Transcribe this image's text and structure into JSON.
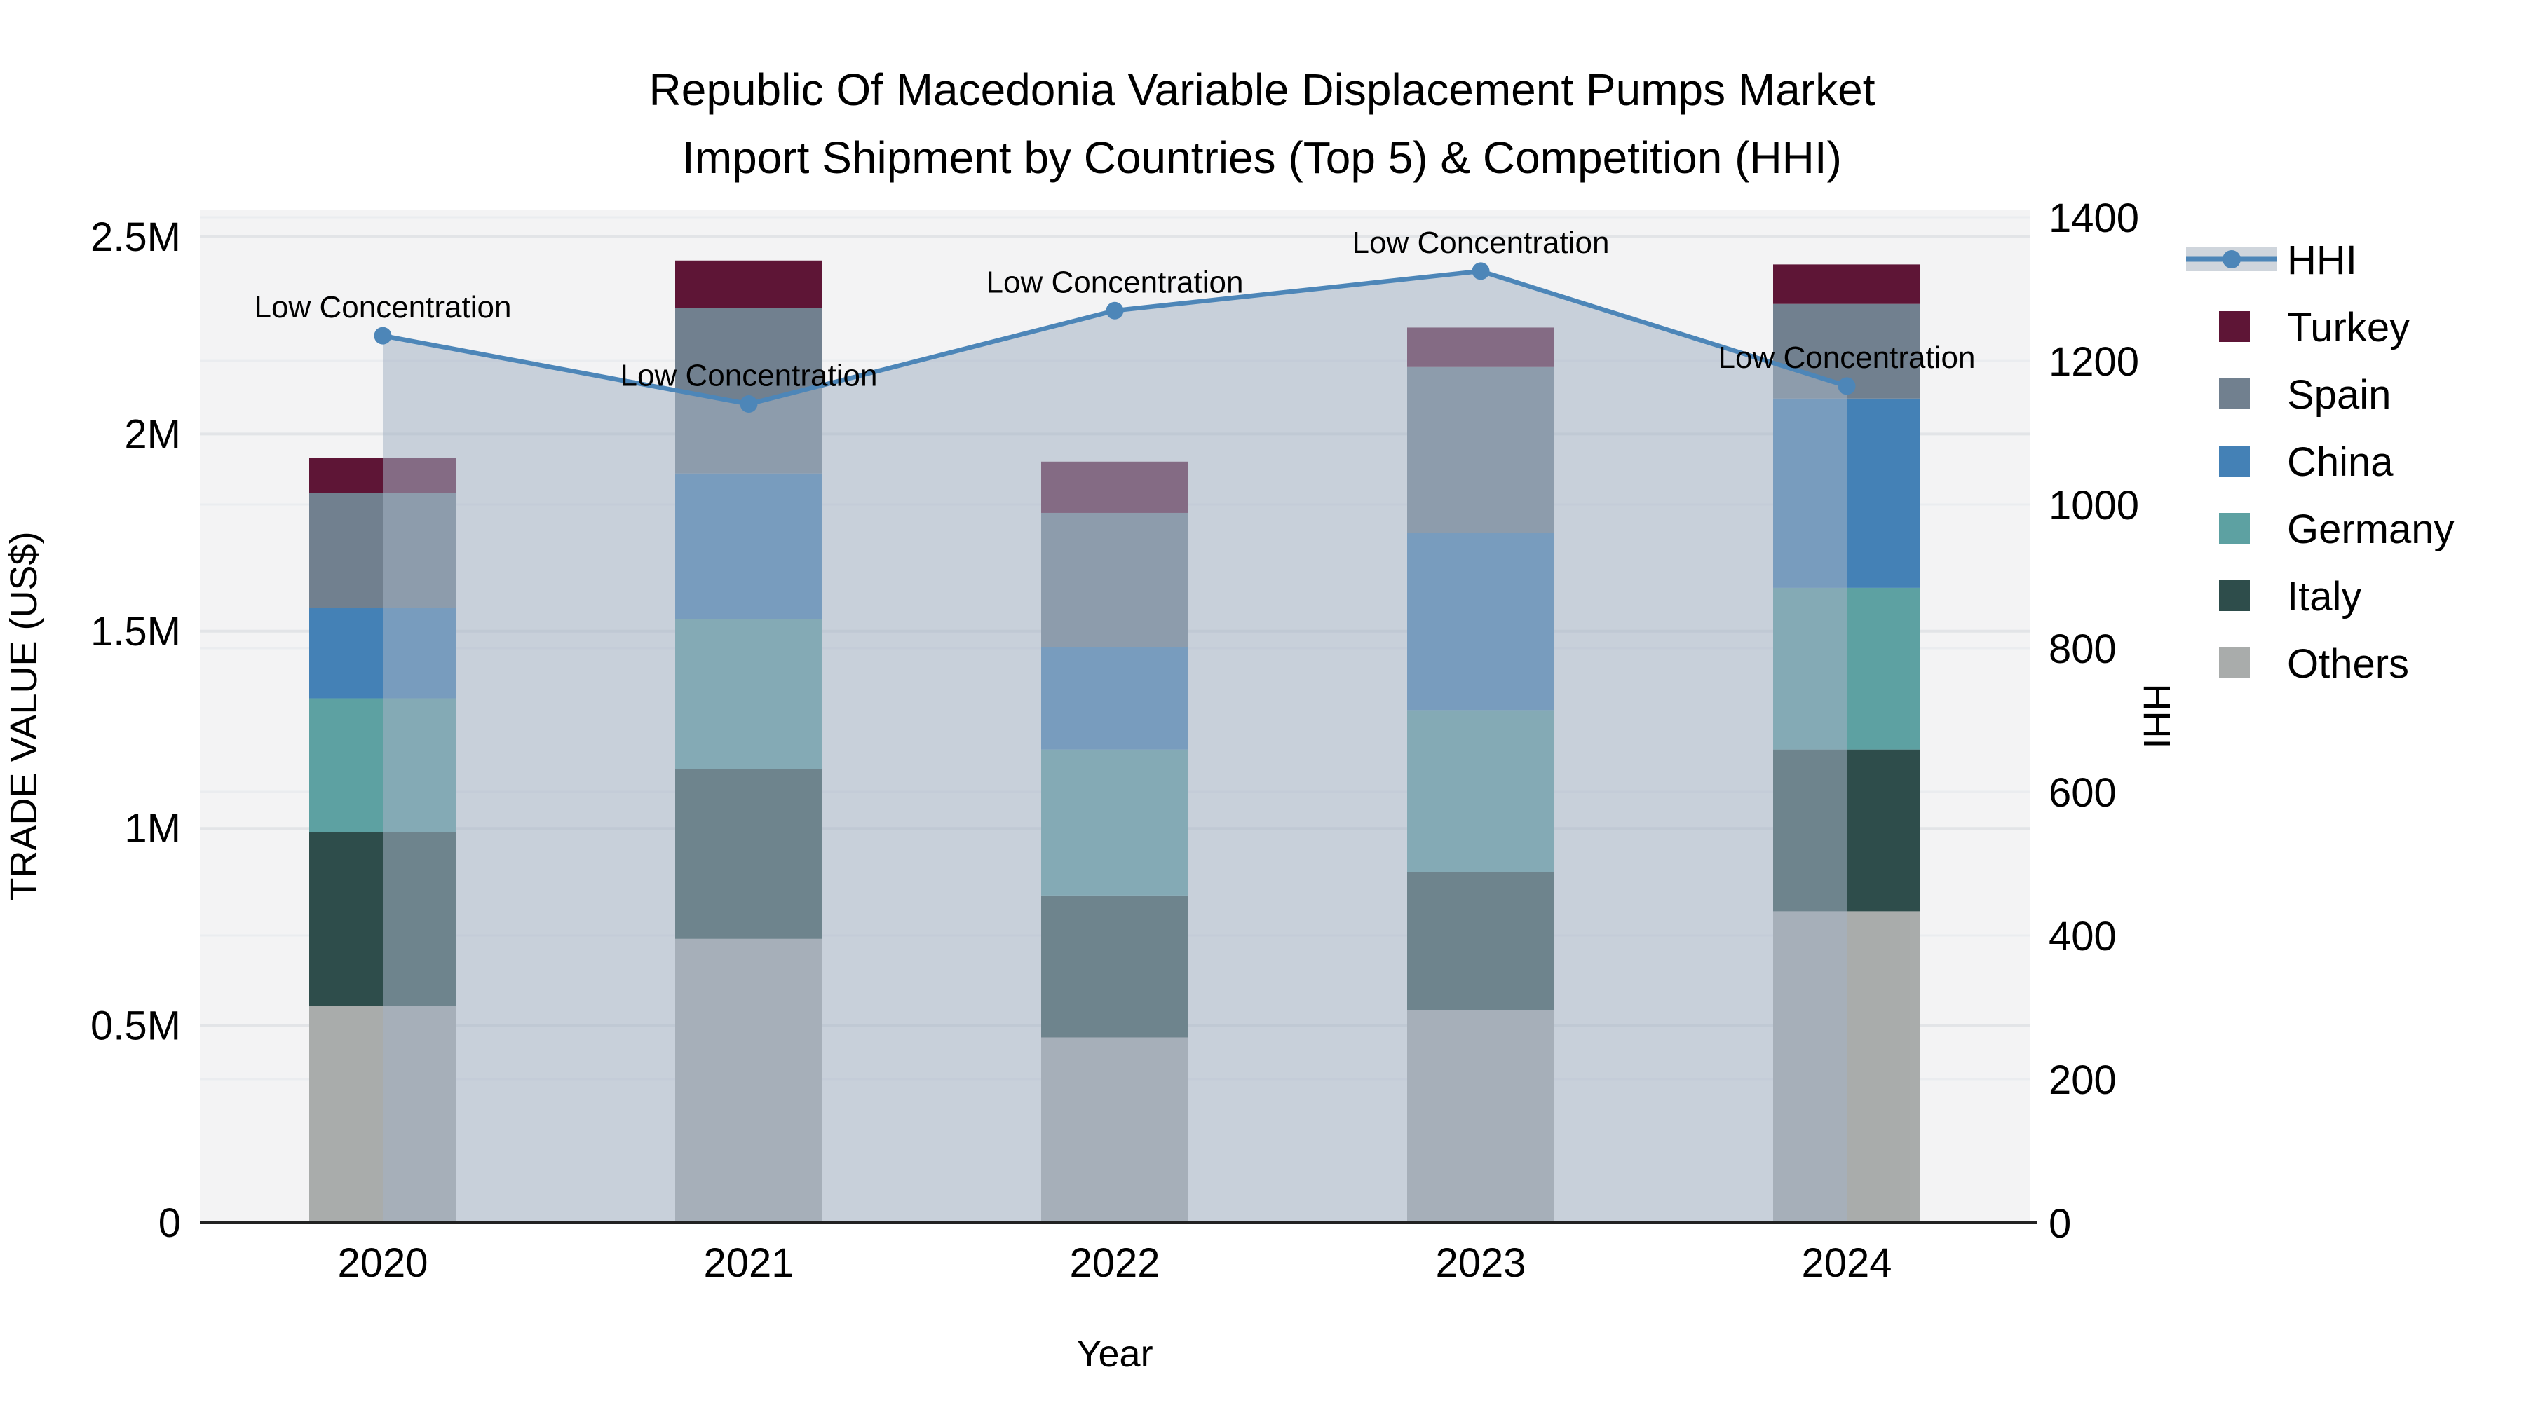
{
  "title": {
    "line1": "Republic Of Macedonia Variable Displacement Pumps Market",
    "line2": "Import Shipment by Countries (Top 5) & Competition (HHI)"
  },
  "axes": {
    "x": {
      "title": "Year",
      "categories": [
        "2020",
        "2021",
        "2022",
        "2023",
        "2024"
      ]
    },
    "y_left": {
      "title": "TRADE VALUE (US$)",
      "tick_labels": [
        "0",
        "0.5M",
        "1M",
        "1.5M",
        "2M",
        "2.5M"
      ],
      "tick_values_musd": [
        0,
        0.5,
        1,
        1.5,
        2,
        2.5
      ],
      "max_musd": 2.5
    },
    "y_right": {
      "title": "HHI",
      "tick_labels": [
        "0",
        "200",
        "400",
        "600",
        "800",
        "1000",
        "1200",
        "1400"
      ],
      "tick_values": [
        0,
        200,
        400,
        600,
        800,
        1000,
        1200,
        1400
      ],
      "max": 1400
    }
  },
  "legend": {
    "items": [
      {
        "label": "HHI",
        "type": "line",
        "color": "#4d86b8"
      },
      {
        "label": "Turkey",
        "type": "square",
        "color": "#5e1536"
      },
      {
        "label": "Spain",
        "type": "square",
        "color": "#71808f"
      },
      {
        "label": "China",
        "type": "square",
        "color": "#4481b6"
      },
      {
        "label": "Germany",
        "type": "square",
        "color": "#5da1a2"
      },
      {
        "label": "Italy",
        "type": "square",
        "color": "#2e4d4b"
      },
      {
        "label": "Others",
        "type": "square",
        "color": "#a9acab"
      }
    ]
  },
  "chart_data": {
    "type": "bar+line",
    "title": "Republic Of Macedonia Variable Displacement Pumps Market Import Shipment by Countries (Top 5) & Competition (HHI)",
    "xlabel": "Year",
    "ylabel_left": "TRADE VALUE (US$)",
    "ylabel_right": "HHI",
    "categories": [
      "2020",
      "2021",
      "2022",
      "2023",
      "2024"
    ],
    "bar_unit": "million US$",
    "stack_order": "bottom-to-top",
    "series": [
      {
        "name": "Others",
        "color": "#a9acab",
        "values_musd": [
          0.55,
          0.72,
          0.47,
          0.54,
          0.79
        ]
      },
      {
        "name": "Italy",
        "color": "#2e4d4b",
        "values_musd": [
          0.44,
          0.43,
          0.36,
          0.35,
          0.41
        ]
      },
      {
        "name": "Germany",
        "color": "#5da1a2",
        "values_musd": [
          0.34,
          0.38,
          0.37,
          0.41,
          0.41
        ]
      },
      {
        "name": "China",
        "color": "#4481b6",
        "values_musd": [
          0.23,
          0.37,
          0.26,
          0.45,
          0.48
        ]
      },
      {
        "name": "Spain",
        "color": "#71808f",
        "values_musd": [
          0.29,
          0.42,
          0.34,
          0.42,
          0.24
        ]
      },
      {
        "name": "Turkey",
        "color": "#5e1536",
        "values_musd": [
          0.09,
          0.12,
          0.13,
          0.1,
          0.1
        ]
      }
    ],
    "bar_totals_musd": [
      1.94,
      2.44,
      1.93,
      2.27,
      2.43
    ],
    "hhi": {
      "name": "HHI",
      "values": [
        1235,
        1140,
        1270,
        1325,
        1165
      ],
      "annotations": [
        "Low Concentration",
        "Low Concentration",
        "Low Concentration",
        "Low Concentration",
        "Low Concentration"
      ],
      "line_color": "#4d86b8",
      "area_fill": "rgba(164,178,196,0.55)"
    },
    "ylim_left_musd": [
      0,
      2.5
    ],
    "ylim_right": [
      0,
      1400
    ],
    "grid": true,
    "legend_position": "right"
  },
  "colors": {
    "plot_bg": "#f3f3f4",
    "grid_major": "#e2e4e7",
    "grid_minor": "#eaecef",
    "axis_line": "#222222",
    "legend_area_band": "#cfd5dc",
    "hhi_line": "#4d86b8",
    "area_fill": "rgba(164,178,196,0.55)",
    "text": "#000000"
  }
}
